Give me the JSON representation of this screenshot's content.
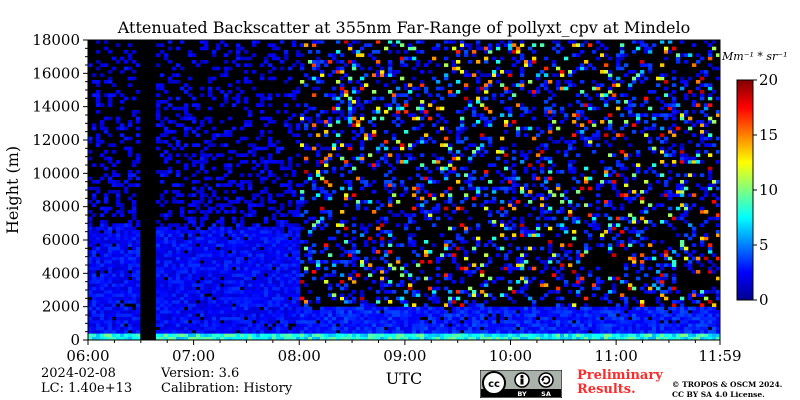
{
  "chart_data": {
    "type": "heatmap",
    "title": "Attenuated Backscatter at 355nm Far-Range of pollyxt_cpv at Mindelo",
    "xlabel": "UTC",
    "ylabel": "Height (m)",
    "x_ticks": [
      "06:00",
      "07:00",
      "08:00",
      "09:00",
      "10:00",
      "11:00",
      "11:59"
    ],
    "x_range": [
      "06:00",
      "11:59"
    ],
    "y_ticks": [
      0,
      2000,
      4000,
      6000,
      8000,
      10000,
      12000,
      14000,
      16000,
      18000
    ],
    "ylim": [
      0,
      18000
    ],
    "colorbar": {
      "unit": "Mm⁻¹ * sr⁻¹",
      "ticks": [
        0,
        5,
        10,
        15,
        20
      ],
      "range": [
        0,
        20
      ],
      "colormap": "jet"
    },
    "data_gaps_utc": [
      [
        "06:30",
        "06:38"
      ]
    ],
    "regions": [
      {
        "from_utc": "06:00",
        "to_utc": "08:00",
        "top_height_m": 6500,
        "typical_value": 1.5
      },
      {
        "from_utc": "08:00",
        "to_utc": "11:59",
        "top_height_m": 2000,
        "typical_value": 2.0
      },
      {
        "from_utc": "06:00",
        "to_utc": "11:59",
        "top_height_m": 400,
        "typical_value": 6.0
      }
    ]
  },
  "footer": {
    "date": "2024-02-08",
    "lc": "LC: 1.40e+13",
    "version": "Version: 3.6",
    "calibration": "Calibration: History",
    "preliminary_line1": "Preliminary",
    "preliminary_line2": "Results.",
    "copyright_line1": "© TROPOS & OSCM 2024.",
    "copyright_line2": "CC BY SA 4.0 License.",
    "license_badge": {
      "icon": "cc-by-sa-icon",
      "labels": [
        "BY",
        "SA"
      ]
    }
  }
}
